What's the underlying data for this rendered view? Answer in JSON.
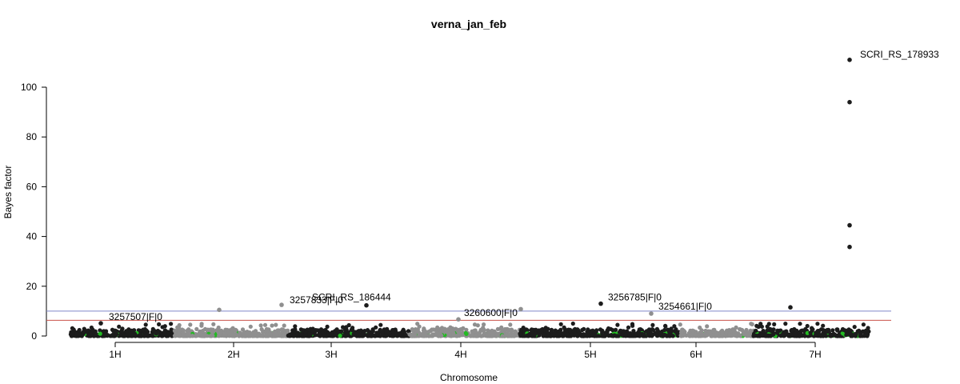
{
  "chart_data": {
    "type": "scatter",
    "title": "verna_jan_feb",
    "xlabel": "Chromosome",
    "ylabel": "Bayes factor",
    "ylim": [
      0,
      110
    ],
    "yticks": [
      0,
      20,
      40,
      60,
      80,
      100
    ],
    "chromosomes": [
      "1H",
      "2H",
      "3H",
      "4H",
      "5H",
      "6H",
      "7H"
    ],
    "thresholds": [
      {
        "value": 10,
        "color": "#7f86c9"
      },
      {
        "value": 6.3,
        "color": "#c9524a"
      }
    ],
    "series_colors": {
      "odd": "#1c1c1c",
      "even": "#8f8f8f",
      "highlight": "#22bb22"
    },
    "labeled_points": [
      {
        "label": "SCRI_RS_178933",
        "chromosome": "7H",
        "value": 111
      },
      {
        "label": "SCRI_RS_186444",
        "chromosome": "3H",
        "value": 12.3
      },
      {
        "label": "3257833|F|0",
        "chromosome": "2H",
        "value": 12.5
      },
      {
        "label": "3257507|F|0",
        "chromosome": "1H",
        "value": 5.1
      },
      {
        "label": "3260600|F|0",
        "chromosome": "4H",
        "value": 6.7
      },
      {
        "label": "3256785|F|0",
        "chromosome": "5H",
        "value": 13.0
      },
      {
        "label": "3254661|F|0",
        "chromosome": "6H",
        "value": 9.0
      }
    ],
    "notable_points": [
      {
        "chromosome": "7H",
        "value": 94
      },
      {
        "chromosome": "7H",
        "value": 44.5
      },
      {
        "chromosome": "7H",
        "value": 35.8
      },
      {
        "chromosome": "7H",
        "value": 11.5
      },
      {
        "chromosome": "4H",
        "value": 10.8
      },
      {
        "chromosome": "2H",
        "value": 10.5
      }
    ]
  }
}
